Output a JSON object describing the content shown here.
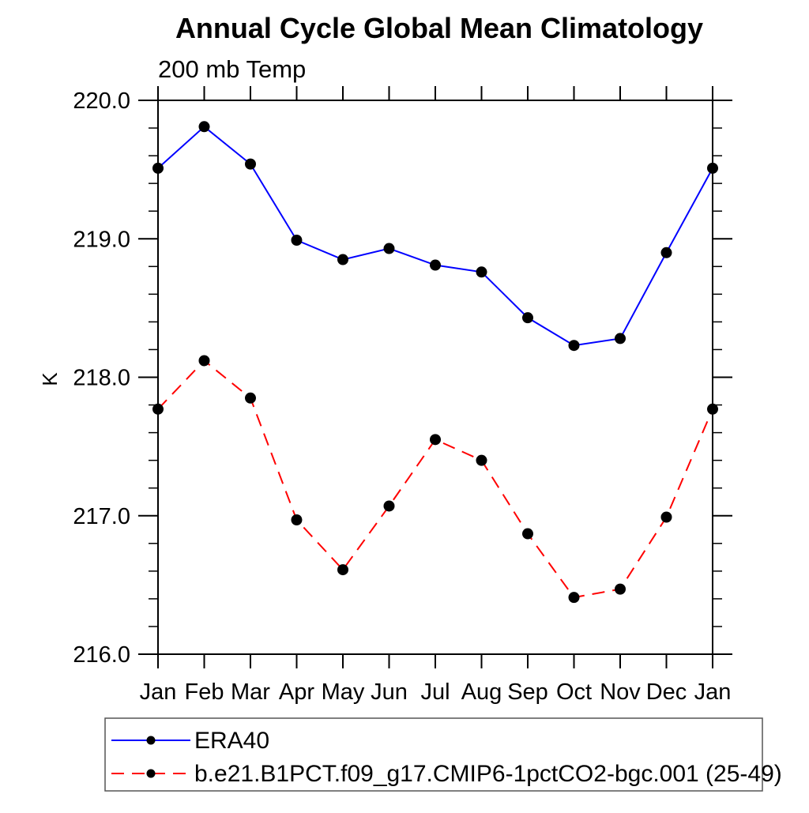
{
  "page": {
    "background": "#ffffff",
    "foreground": "#000000"
  },
  "chart_data": {
    "type": "line",
    "title": "Annual Cycle Global Mean Climatology",
    "subtitle": "200 mb Temp",
    "xlabel": "",
    "ylabel": "K",
    "categories": [
      "Jan",
      "Feb",
      "Mar",
      "Apr",
      "May",
      "Jun",
      "Jul",
      "Aug",
      "Sep",
      "Oct",
      "Nov",
      "Dec",
      "Jan"
    ],
    "ylim": [
      216.0,
      220.0
    ],
    "y_major_tick_step": 1.0,
    "y_minor_tick_step": 0.2,
    "y_tick_labels": [
      "216.0",
      "217.0",
      "218.0",
      "219.0",
      "220.0"
    ],
    "grid": false,
    "marker": {
      "shape": "filled-circle",
      "color": "#000000"
    },
    "legend": {
      "position": "below-plot-left",
      "border": true
    },
    "series": [
      {
        "name": "ERA40",
        "color": "#0000ff",
        "line_style": "solid",
        "values": [
          219.51,
          219.81,
          219.54,
          218.99,
          218.85,
          218.93,
          218.81,
          218.76,
          218.43,
          218.23,
          218.28,
          218.9,
          219.51
        ]
      },
      {
        "name": "b.e21.B1PCT.f09_g17.CMIP6-1pctCO2-bgc.001 (25-49)",
        "color": "#ff0000",
        "line_style": "dashed",
        "values": [
          217.77,
          218.12,
          217.85,
          216.97,
          216.61,
          217.07,
          217.55,
          217.4,
          216.87,
          216.41,
          216.47,
          216.99,
          217.77
        ]
      }
    ]
  }
}
